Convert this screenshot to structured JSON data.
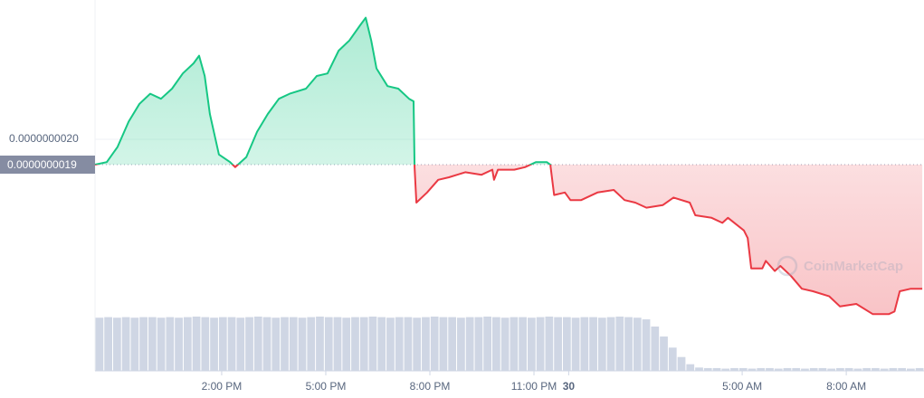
{
  "chart_data": {
    "type": "line",
    "watermark": "CoinMarketCap",
    "up_color": "#16c784",
    "down_color": "#ea3943",
    "volume_color": "#cfd6e4",
    "grid": true,
    "reference": {
      "value": 1.9e-09,
      "label": "0.0000000019"
    },
    "xlim": [
      10.35,
      34.24
    ],
    "xticks": [
      {
        "value": 14,
        "label": "2:00 PM"
      },
      {
        "value": 17,
        "label": "5:00 PM"
      },
      {
        "value": 20,
        "label": "8:00 PM"
      },
      {
        "value": 23,
        "label": "11:00 PM"
      },
      {
        "value": 24,
        "label": "30"
      },
      {
        "value": 29,
        "label": "5:00 AM"
      },
      {
        "value": 32,
        "label": "8:00 AM"
      }
    ],
    "ylim": [
      1.3e-09,
      2.5e-09
    ],
    "yticks": [
      {
        "value": 2e-09,
        "label": "0.0000000020"
      }
    ],
    "series": [
      {
        "x": [
          10.35,
          10.69,
          11.0,
          11.32,
          11.63,
          11.94,
          12.25,
          12.57,
          12.88,
          13.19,
          13.35,
          13.51,
          13.66,
          13.92,
          14.24,
          14.39,
          14.71,
          15.02,
          15.33,
          15.65,
          15.96,
          16.43,
          16.74,
          17.05,
          17.37,
          17.68,
          17.99,
          18.15,
          18.31,
          18.46,
          18.78,
          19.09,
          19.4,
          19.53,
          19.56,
          19.61,
          19.92,
          20.24,
          20.55,
          21.02,
          21.49,
          21.8,
          21.85,
          21.96,
          22.43,
          22.74,
          23.06,
          23.37,
          23.47,
          23.58,
          23.89,
          24.05,
          24.36,
          24.83,
          25.3,
          25.61,
          25.92,
          26.24,
          26.71,
          27.02,
          27.49,
          27.65,
          28.12,
          28.43,
          28.59,
          29.05,
          29.16,
          29.26,
          29.58,
          29.68,
          29.94,
          30.1,
          30.41,
          30.72,
          31.04,
          31.51,
          31.82,
          32.29,
          32.76,
          33.23,
          33.39,
          33.54,
          33.86,
          34.19
        ],
        "values": [
          1.9e-09,
          1.91e-09,
          1.97e-09,
          2.07e-09,
          2.14e-09,
          2.18e-09,
          2.16e-09,
          2.2e-09,
          2.26e-09,
          2.3e-09,
          2.33e-09,
          2.25e-09,
          2.1e-09,
          1.94e-09,
          1.91e-09,
          1.89e-09,
          1.93e-09,
          2.03e-09,
          2.1e-09,
          2.16e-09,
          2.18e-09,
          2.2e-09,
          2.25e-09,
          2.26e-09,
          2.35e-09,
          2.39e-09,
          2.45e-09,
          2.48e-09,
          2.39e-09,
          2.28e-09,
          2.21e-09,
          2.2e-09,
          2.16e-09,
          2.15e-09,
          1.89e-09,
          1.75e-09,
          1.79e-09,
          1.84e-09,
          1.85e-09,
          1.87e-09,
          1.86e-09,
          1.88e-09,
          1.84e-09,
          1.88e-09,
          1.88e-09,
          1.89e-09,
          1.91e-09,
          1.91e-09,
          1.9e-09,
          1.78e-09,
          1.79e-09,
          1.76e-09,
          1.76e-09,
          1.79e-09,
          1.8e-09,
          1.76e-09,
          1.75e-09,
          1.73e-09,
          1.74e-09,
          1.77e-09,
          1.75e-09,
          1.7e-09,
          1.69e-09,
          1.67e-09,
          1.69e-09,
          1.64e-09,
          1.61e-09,
          1.49e-09,
          1.49e-09,
          1.52e-09,
          1.48e-09,
          1.5e-09,
          1.46e-09,
          1.41e-09,
          1.4e-09,
          1.38e-09,
          1.34e-09,
          1.35e-09,
          1.31e-09,
          1.31e-09,
          1.32e-09,
          1.4e-09,
          1.41e-09,
          1.41e-09
        ]
      }
    ],
    "volume": [
      96,
      97,
      96,
      97,
      96,
      97,
      97,
      96,
      97,
      96,
      97,
      98,
      97,
      96,
      97,
      97,
      96,
      97,
      98,
      97,
      96,
      97,
      97,
      96,
      97,
      98,
      97,
      97,
      96,
      97,
      97,
      98,
      97,
      96,
      97,
      97,
      96,
      97,
      98,
      97,
      97,
      96,
      97,
      97,
      98,
      97,
      96,
      97,
      97,
      96,
      97,
      98,
      97,
      97,
      96,
      97,
      97,
      96,
      97,
      98,
      97,
      96,
      93,
      80,
      62,
      42,
      25,
      12,
      6,
      5,
      5,
      4,
      5,
      5,
      4,
      5,
      5,
      4,
      5,
      5,
      4,
      5,
      5,
      4,
      5,
      5,
      4,
      5,
      5,
      4,
      5,
      5,
      4,
      5
    ]
  }
}
